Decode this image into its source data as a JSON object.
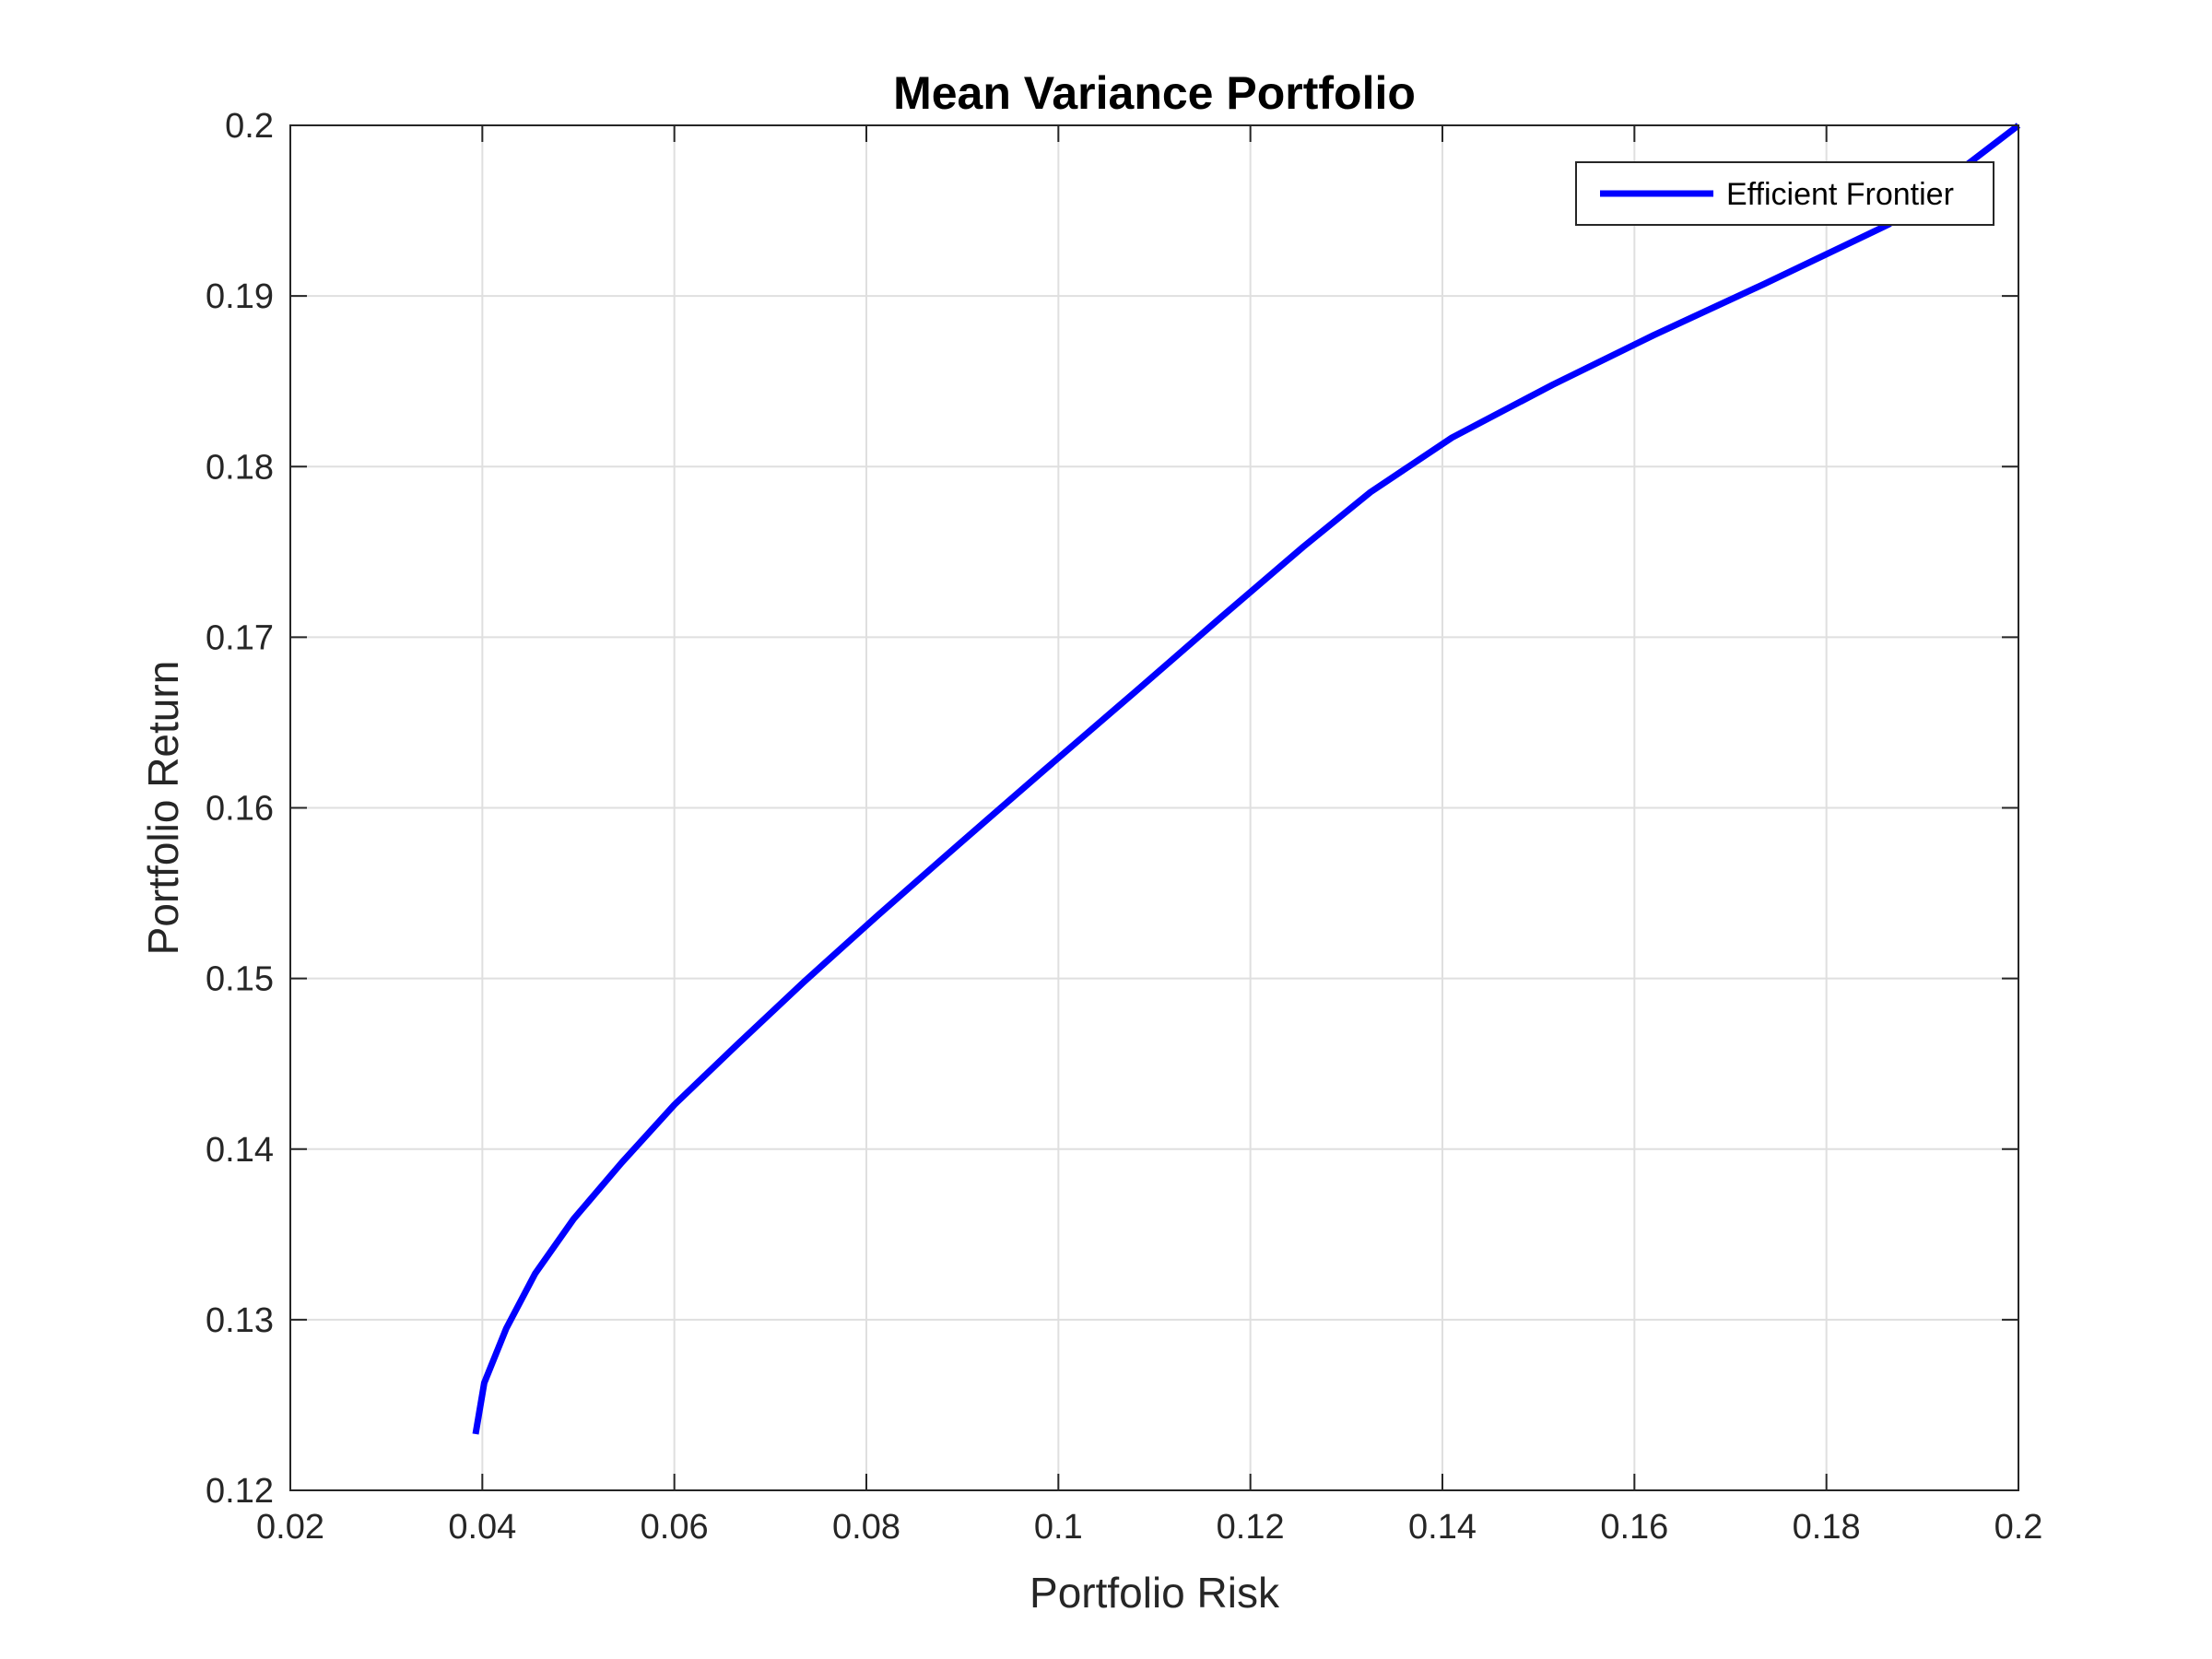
{
  "chart_data": {
    "type": "line",
    "title": "Mean Variance Portfolio",
    "xlabel": "Portfolio Risk",
    "ylabel": "Portfolio Return",
    "xlim": [
      0.02,
      0.2
    ],
    "ylim": [
      0.12,
      0.2
    ],
    "xticks": [
      0.02,
      0.04,
      0.06,
      0.08,
      0.1,
      0.12,
      0.14,
      0.16,
      0.18,
      0.2
    ],
    "xtick_labels": [
      "0.02",
      "0.04",
      "0.06",
      "0.08",
      "0.1",
      "0.12",
      "0.14",
      "0.16",
      "0.18",
      "0.2"
    ],
    "yticks": [
      0.12,
      0.13,
      0.14,
      0.15,
      0.16,
      0.17,
      0.18,
      0.19,
      0.2
    ],
    "ytick_labels": [
      "0.12",
      "0.13",
      "0.14",
      "0.15",
      "0.16",
      "0.17",
      "0.18",
      "0.19",
      "0.2"
    ],
    "grid": true,
    "legend_position": "top-right",
    "series": [
      {
        "name": "Efficient Frontier",
        "color": "#0000ff",
        "x": [
          0.0393,
          0.0402,
          0.0425,
          0.0455,
          0.0495,
          0.0545,
          0.06,
          0.0665,
          0.0735,
          0.0812,
          0.0895,
          0.0985,
          0.108,
          0.117,
          0.1255,
          0.1325,
          0.141,
          0.1515,
          0.162,
          0.1735,
          0.1865,
          0.2
        ],
        "y": [
          0.1233,
          0.1263,
          0.1295,
          0.1327,
          0.1359,
          0.1392,
          0.1426,
          0.1461,
          0.1498,
          0.1537,
          0.1578,
          0.1622,
          0.1668,
          0.1712,
          0.1753,
          0.1785,
          0.1817,
          0.1848,
          0.1877,
          0.1907,
          0.1942,
          0.2
        ]
      }
    ]
  }
}
